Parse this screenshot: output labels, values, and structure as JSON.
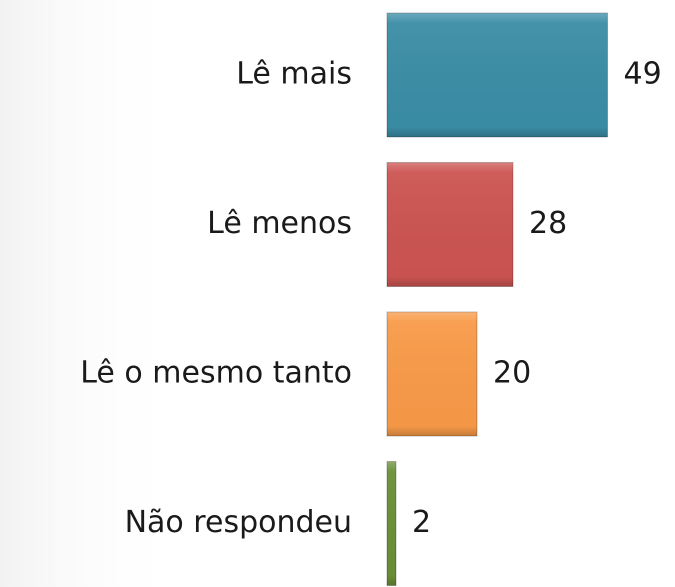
{
  "chart_data": {
    "type": "bar",
    "orientation": "horizontal",
    "categories": [
      "Lê mais",
      "Lê menos",
      "Lê o mesmo tanto",
      "Não respondeu"
    ],
    "values": [
      49,
      28,
      20,
      2
    ],
    "colors": [
      "#3a8da6",
      "#cc5451",
      "#f89a48",
      "#6b8f37"
    ]
  }
}
